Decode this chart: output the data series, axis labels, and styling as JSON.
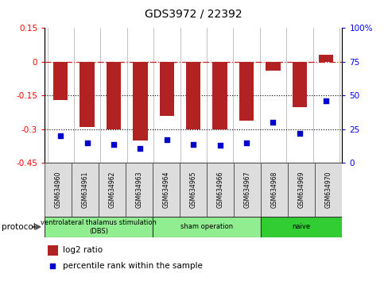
{
  "title": "GDS3972 / 22392",
  "samples": [
    "GSM634960",
    "GSM634961",
    "GSM634962",
    "GSM634963",
    "GSM634964",
    "GSM634965",
    "GSM634966",
    "GSM634967",
    "GSM634968",
    "GSM634969",
    "GSM634970"
  ],
  "log2_ratio": [
    -0.17,
    -0.29,
    -0.3,
    -0.35,
    -0.24,
    -0.3,
    -0.3,
    -0.26,
    -0.04,
    -0.2,
    0.03
  ],
  "percentile_rank": [
    20,
    15,
    14,
    11,
    17,
    14,
    13,
    15,
    30,
    22,
    46
  ],
  "bar_color": "#B22222",
  "dot_color": "#0000CC",
  "ylim_left": [
    -0.45,
    0.15
  ],
  "ylim_right": [
    0,
    100
  ],
  "yticks_left": [
    -0.45,
    -0.3,
    -0.15,
    0.0,
    0.15
  ],
  "ytick_labels_left": [
    "-0.45",
    "-0.3",
    "-0.15",
    "0",
    "0.15"
  ],
  "yticks_right": [
    0,
    25,
    50,
    75,
    100
  ],
  "ytick_labels_right": [
    "0",
    "25",
    "50",
    "75",
    "100%"
  ],
  "hline_value": 0.0,
  "dotted_hlines": [
    -0.15,
    -0.3
  ],
  "protocol_groups": [
    {
      "label": "ventrolateral thalamus stimulation\n(DBS)",
      "start": 0,
      "end": 4,
      "color": "#90EE90"
    },
    {
      "label": "sham operation",
      "start": 4,
      "end": 8,
      "color": "#90EE90"
    },
    {
      "label": "naive",
      "start": 8,
      "end": 11,
      "color": "#32CD32"
    }
  ],
  "legend_bar_label": "log2 ratio",
  "legend_dot_label": "percentile rank within the sample",
  "background_color": "#FFFFFF",
  "plot_bg_color": "#FFFFFF",
  "bar_width": 0.55
}
